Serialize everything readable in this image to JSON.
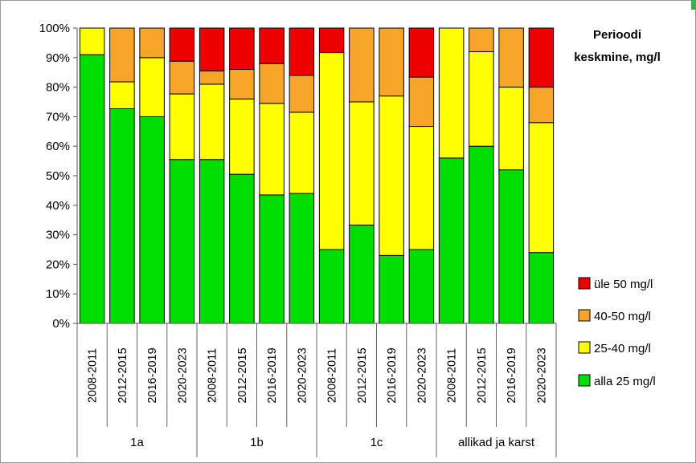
{
  "chart_data": {
    "type": "bar",
    "stacked": true,
    "title_lines": [
      "Perioodi",
      "keskmine, mg/l"
    ],
    "y_tick_labels": [
      "0%",
      "10%",
      "20%",
      "30%",
      "40%",
      "50%",
      "60%",
      "70%",
      "80%",
      "90%",
      "100%"
    ],
    "ylim": [
      0,
      100
    ],
    "grid": true,
    "legend_position": "right",
    "groups": [
      {
        "label": "1a",
        "categories": [
          "2008-2011",
          "2012-2015",
          "2016-2019",
          "2020-2023"
        ]
      },
      {
        "label": "1b",
        "categories": [
          "2008-2011",
          "2012-2015",
          "2016-2019",
          "2020-2023"
        ]
      },
      {
        "label": "1c",
        "categories": [
          "2008-2011",
          "2012-2015",
          "2016-2019",
          "2020-2023"
        ]
      },
      {
        "label": "allikad ja karst",
        "categories": [
          "2008-2011",
          "2012-2015",
          "2016-2019",
          "2020-2023"
        ]
      }
    ],
    "series": [
      {
        "name": "alla 25 mg/l",
        "color": "#00dd00",
        "values": [
          91,
          72.7,
          70,
          55.5,
          55.5,
          50.5,
          43.5,
          44,
          25,
          33.3,
          23,
          25,
          56,
          60,
          52,
          24
        ]
      },
      {
        "name": "25-40 mg/l",
        "color": "#ffff00",
        "values": [
          9,
          9.1,
          20,
          22.2,
          25.5,
          25.5,
          31,
          27.5,
          66.7,
          41.7,
          54,
          41.7,
          44,
          32,
          28,
          44
        ]
      },
      {
        "name": "40-50 mg/l",
        "color": "#f7a42a",
        "values": [
          0,
          18.2,
          10,
          11.1,
          4.5,
          10,
          13.5,
          12.5,
          0,
          25,
          23,
          16.7,
          0,
          8,
          20,
          12
        ]
      },
      {
        "name": "üle 50 mg/l",
        "color": "#ee0000",
        "values": [
          0,
          0,
          0,
          11.2,
          14.5,
          14,
          12,
          16,
          8.3,
          0,
          0,
          16.6,
          0,
          0,
          0,
          20
        ]
      }
    ],
    "legend_order": [
      "üle 50 mg/l",
      "40-50 mg/l",
      "25-40 mg/l",
      "alla 25 mg/l"
    ]
  }
}
